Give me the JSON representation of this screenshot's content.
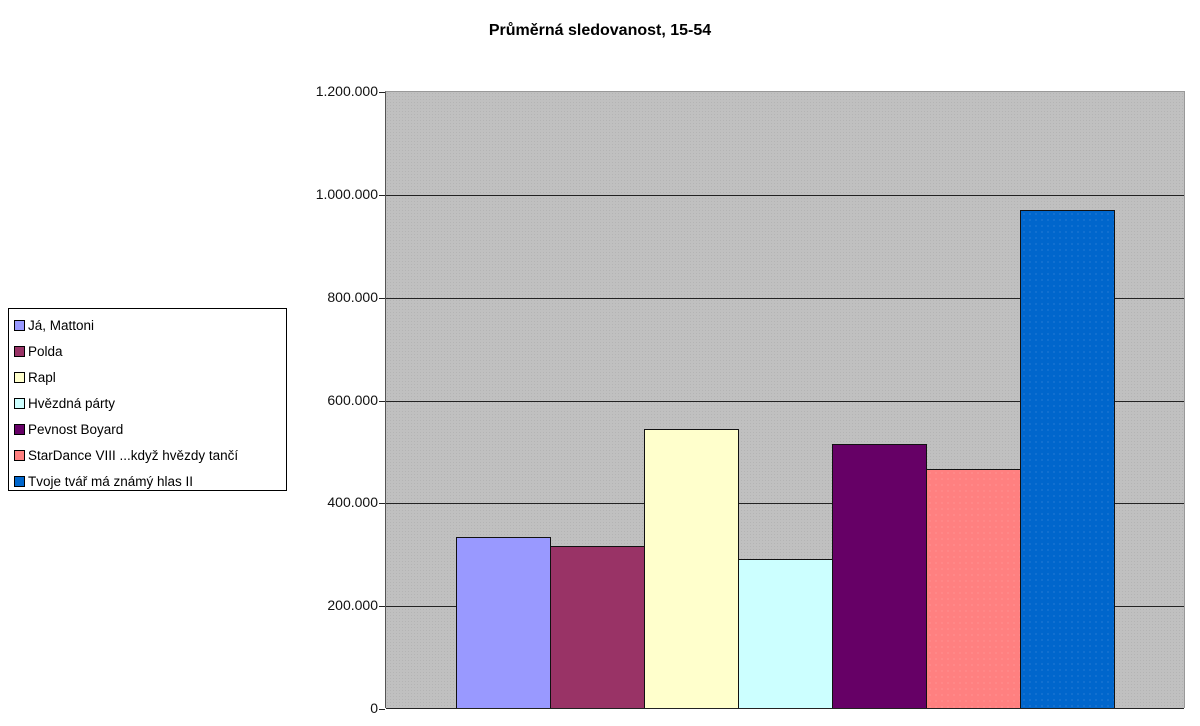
{
  "chart_data": {
    "type": "bar",
    "title": "Průměrná sledovanost, 15-54",
    "xlabel": "",
    "ylabel": "",
    "ylim": [
      0,
      1200000
    ],
    "yticks": [
      0,
      200000,
      400000,
      600000,
      800000,
      1000000,
      1200000
    ],
    "ytick_labels": [
      "0",
      "200.000",
      "400.000",
      "600.000",
      "800.000",
      "1.000.000",
      "1.200.000"
    ],
    "grid": true,
    "legend_position": "left",
    "categories": [
      ""
    ],
    "series": [
      {
        "name": "Já, Mattoni",
        "color": "#9999ff",
        "values": [
          333000
        ]
      },
      {
        "name": "Polda",
        "color": "#993366",
        "values": [
          315000
        ]
      },
      {
        "name": "Rapl",
        "color": "#ffffcc",
        "values": [
          542000
        ]
      },
      {
        "name": "Hvězdná párty",
        "color": "#ccffff",
        "values": [
          290000
        ]
      },
      {
        "name": "Pevnost Boyard",
        "color": "#660066",
        "values": [
          514000
        ]
      },
      {
        "name": "StarDance VIII ...když hvězdy tančí",
        "color": "#ff8080",
        "values": [
          464000
        ]
      },
      {
        "name": "Tvoje tvář má známý hlas II",
        "color": "#0066cc",
        "values": [
          968000
        ]
      }
    ]
  }
}
